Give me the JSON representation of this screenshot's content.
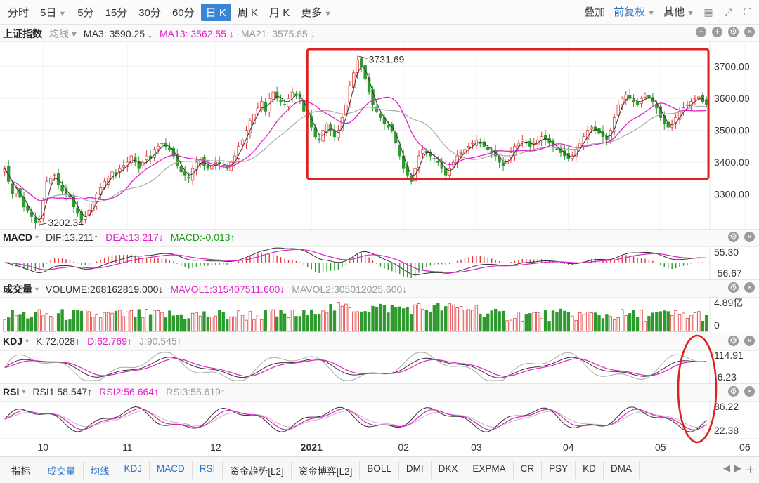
{
  "toolbar": {
    "tabs": [
      {
        "label": "分时"
      },
      {
        "label": "5日",
        "chev": true
      },
      {
        "label": "5分"
      },
      {
        "label": "15分"
      },
      {
        "label": "30分"
      },
      {
        "label": "60分"
      },
      {
        "label": "日 K",
        "active": true
      },
      {
        "label": "周 K"
      },
      {
        "label": "月 K"
      },
      {
        "label": "更多",
        "chev": true
      }
    ],
    "overlay_label": "叠加",
    "adjust_label": "前复权",
    "other_label": "其他"
  },
  "kline": {
    "title": "上证指数",
    "mode": "均线",
    "ma3": "MA3: 3590.25 ↓",
    "ma13": "MA13: 3562.55 ↓",
    "ma21": "MA21: 3575.85 ↓",
    "high_label": "3731.69",
    "low_label": "3202.34"
  },
  "macd": {
    "title": "MACD",
    "dif": "DIF:13.211↑",
    "dea": "DEA:13.217↓",
    "macd": "MACD:-0.013↑",
    "max": "55.30",
    "min": "-56.67"
  },
  "volume": {
    "title": "成交量",
    "volume": "VOLUME:268162819.000↓",
    "mavol1": "MAVOL1:315407511.600↓",
    "mavol2": "MAVOL2:305012025.600↓",
    "max": "4.89亿",
    "min": "0"
  },
  "kdj": {
    "title": "KDJ",
    "k": "K:72.028↑",
    "d": "D:62.769↑",
    "j": "J:90.545↑",
    "max": "114.91",
    "min": "-6.23"
  },
  "rsi": {
    "title": "RSI",
    "rsi1": "RSI1:58.547↑",
    "rsi2": "RSI2:56.664↑",
    "rsi3": "RSI3:55.619↑",
    "max": "86.22",
    "min": "22.38"
  },
  "xaxis": [
    "10",
    "11",
    "12",
    "2021",
    "02",
    "03",
    "04",
    "05",
    "06"
  ],
  "bottom_tabs": [
    "指标",
    "成交量",
    "均线",
    "KDJ",
    "MACD",
    "RSI",
    "资金趋势[L2]",
    "资金博弈[L2]",
    "BOLL",
    "DMI",
    "DKX",
    "EXPMA",
    "CR",
    "PSY",
    "KD",
    "DMA"
  ],
  "colors": {
    "up": "#e23b3b",
    "down": "#2d9a2d",
    "ma3": "#333333",
    "ma13": "#e020c8",
    "ma21": "#aaaaaa",
    "accent": "#3a85d6",
    "annotation": "#e02020"
  },
  "chart_data": {
    "type": "candlestick",
    "title": "上证指数",
    "y_ticks": [
      3300,
      3400,
      3500,
      3600,
      3700
    ],
    "ylim": [
      3200,
      3750
    ],
    "x_month_labels": [
      "10",
      "11",
      "12",
      "2021",
      "02",
      "03",
      "04",
      "05",
      "06"
    ],
    "x_month_start_index": [
      10,
      32,
      55,
      80,
      104,
      123,
      147,
      171,
      193
    ],
    "close_series": [
      3380,
      3340,
      3300,
      3320,
      3290,
      3260,
      3250,
      3230,
      3210,
      3215,
      3280,
      3340,
      3350,
      3360,
      3330,
      3310,
      3300,
      3290,
      3260,
      3240,
      3220,
      3230,
      3250,
      3270,
      3300,
      3320,
      3340,
      3350,
      3370,
      3360,
      3380,
      3390,
      3400,
      3420,
      3400,
      3380,
      3400,
      3420,
      3410,
      3440,
      3450,
      3460,
      3450,
      3440,
      3420,
      3390,
      3370,
      3360,
      3350,
      3380,
      3400,
      3410,
      3390,
      3380,
      3390,
      3400,
      3395,
      3390,
      3380,
      3400,
      3420,
      3450,
      3470,
      3500,
      3530,
      3550,
      3570,
      3590,
      3560,
      3600,
      3620,
      3600,
      3590,
      3580,
      3600,
      3620,
      3610,
      3600,
      3560,
      3540,
      3510,
      3480,
      3470,
      3500,
      3520,
      3500,
      3480,
      3500,
      3540,
      3580,
      3640,
      3680,
      3720,
      3700,
      3660,
      3620,
      3580,
      3560,
      3540,
      3520,
      3510,
      3500,
      3460,
      3420,
      3380,
      3360,
      3340,
      3380,
      3420,
      3440,
      3430,
      3420,
      3410,
      3400,
      3380,
      3360,
      3380,
      3400,
      3420,
      3430,
      3440,
      3450,
      3460,
      3470,
      3460,
      3450,
      3440,
      3430,
      3420,
      3400,
      3390,
      3410,
      3430,
      3450,
      3460,
      3470,
      3460,
      3450,
      3460,
      3470,
      3480,
      3470,
      3460,
      3450,
      3440,
      3430,
      3420,
      3410,
      3420,
      3440,
      3460,
      3480,
      3500,
      3510,
      3500,
      3490,
      3480,
      3470,
      3500,
      3540,
      3580,
      3600,
      3610,
      3600,
      3590,
      3580,
      3600,
      3610,
      3600,
      3590,
      3570,
      3540,
      3520,
      3510,
      3520,
      3540,
      3560,
      3570,
      3580,
      3590,
      3600,
      3605,
      3590,
      3580
    ],
    "high": 3731.69,
    "low": 3202.34,
    "annotations": [
      "3731.69",
      "3202.34"
    ]
  }
}
